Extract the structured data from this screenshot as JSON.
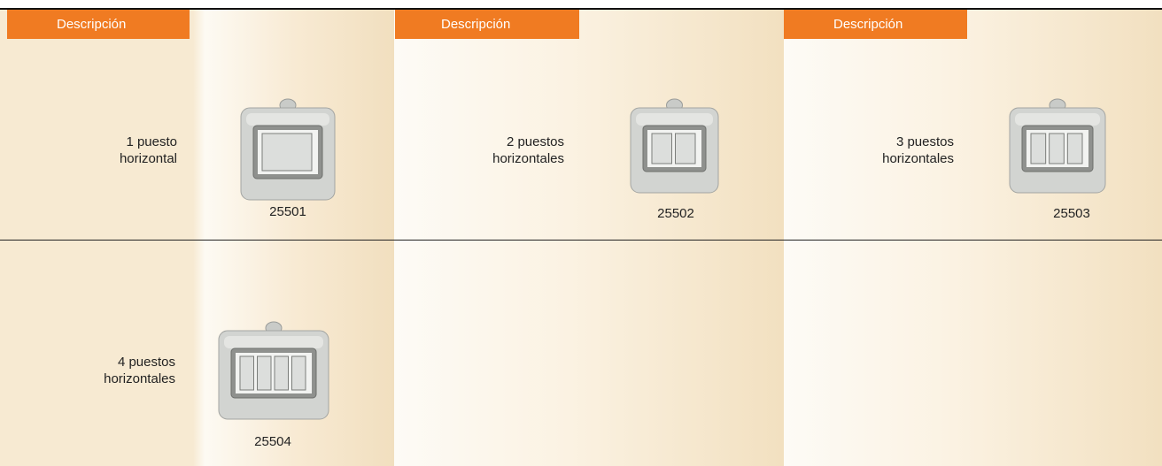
{
  "headers": [
    "Descripción",
    "Descripción",
    "Descripción"
  ],
  "products": [
    {
      "description": [
        "1 puesto",
        "horizontal"
      ],
      "code": "25501"
    },
    {
      "description": [
        "2 puestos",
        "horizontales"
      ],
      "code": "25502"
    },
    {
      "description": [
        "3 puestos",
        "horizontales"
      ],
      "code": "25503"
    },
    {
      "description": [
        "4 puestos",
        "horizontales"
      ],
      "code": "25504"
    }
  ]
}
